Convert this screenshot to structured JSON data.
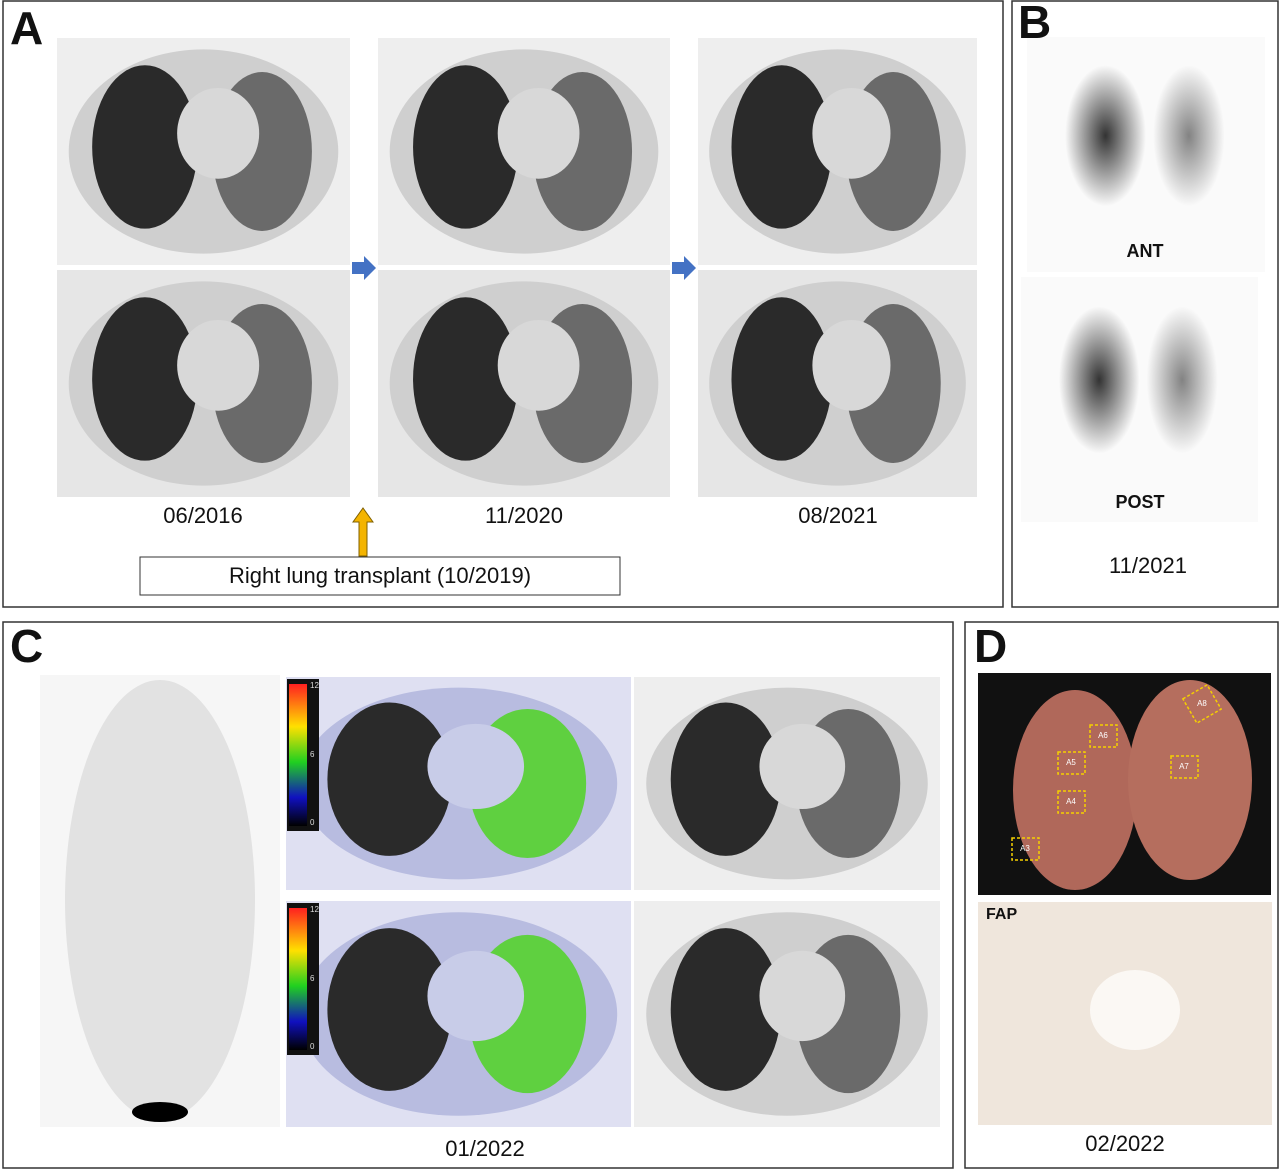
{
  "panels": [
    {
      "label": "A",
      "dates": [
        "06/2016",
        "11/2020",
        "08/2021"
      ],
      "annotation": "Right lung transplant (10/2019)"
    },
    {
      "label": "B",
      "views": [
        "ANT",
        "POST"
      ],
      "date": "11/2021"
    },
    {
      "label": "C",
      "colorbars": [
        [
          12,
          6,
          0
        ],
        [
          12,
          6,
          0
        ]
      ],
      "date": "01/2022"
    },
    {
      "label": "D",
      "regions": [
        "A8",
        "A6",
        "A5",
        "A7",
        "A4",
        "A3"
      ],
      "stain": "FAP",
      "date": "02/2022"
    }
  ]
}
